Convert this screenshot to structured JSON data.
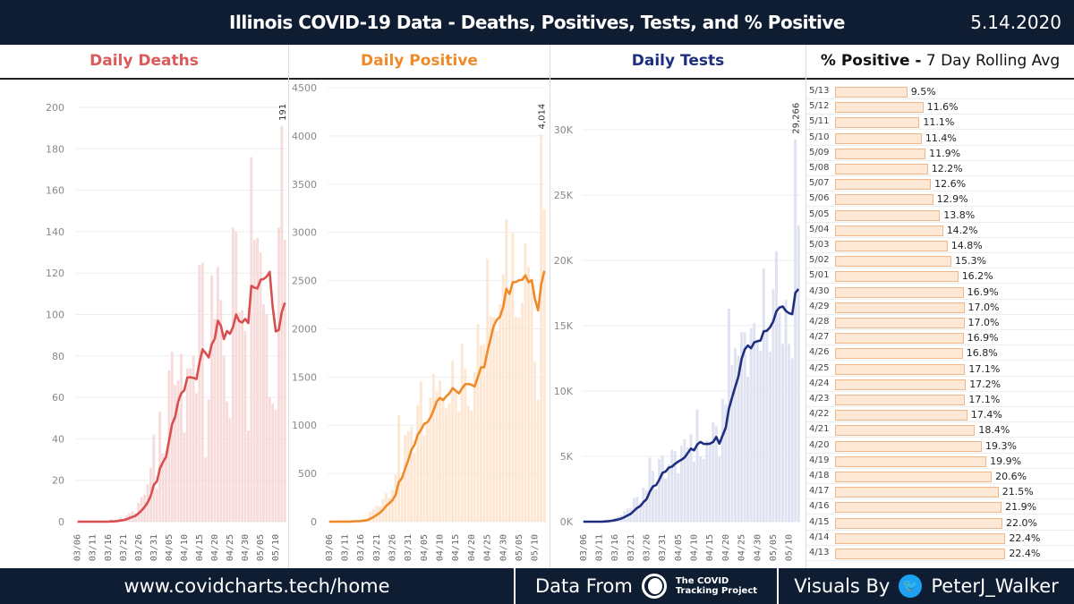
{
  "header": {
    "title": "Illinois COVID-19 Data - Deaths, Positives, Tests, and % Positive",
    "date": "5.14.2020"
  },
  "subheads": {
    "deaths": "Daily Deaths",
    "positive": "Daily Positive",
    "tests": "Daily Tests",
    "pct_bold": "% Positive -",
    "pct_rest": " 7 Day Rolling Avg"
  },
  "colors": {
    "deaths": "#dc5a5a",
    "positive": "#f08a28",
    "tests": "#1f2f80",
    "header_bg": "#0f1d33"
  },
  "chart_data": [
    {
      "type": "bar+line",
      "title": "Daily Deaths",
      "line": "7-day rolling average",
      "start_date": "2020-03-06",
      "x_tick_labels": [
        "03/06",
        "03/11",
        "03/16",
        "03/21",
        "03/26",
        "03/31",
        "04/05",
        "04/10",
        "04/15",
        "04/20",
        "04/25",
        "04/30",
        "05/05",
        "05/10"
      ],
      "y_ticks": [
        0,
        20,
        40,
        60,
        80,
        100,
        120,
        140,
        160,
        180,
        200
      ],
      "ylim": [
        0,
        208
      ],
      "peak_label": "191",
      "values": [
        0,
        0,
        0,
        0,
        0,
        0,
        0,
        0,
        0,
        0,
        0,
        1,
        0,
        1,
        2,
        1,
        3,
        4,
        5,
        4,
        9,
        12,
        13,
        18,
        26,
        42,
        16,
        53,
        33,
        31,
        73,
        82,
        66,
        68,
        81,
        43,
        74,
        74,
        80,
        62,
        124,
        125,
        31,
        59,
        119,
        98,
        123,
        107,
        80,
        58,
        50,
        142,
        140,
        101,
        102,
        92,
        44,
        176,
        136,
        137,
        130,
        105,
        100,
        60,
        57,
        54,
        142,
        191,
        136
      ]
    },
    {
      "type": "bar+line",
      "title": "Daily Positive",
      "line": "7-day rolling average",
      "start_date": "2020-03-06",
      "x_tick_labels": [
        "03/06",
        "03/11",
        "03/16",
        "03/21",
        "03/26",
        "03/31",
        "04/05",
        "04/10",
        "04/15",
        "04/20",
        "04/25",
        "04/30",
        "05/05",
        "05/10"
      ],
      "y_ticks": [
        0,
        500,
        1000,
        1500,
        2000,
        2500,
        3000,
        3500,
        4000,
        4500
      ],
      "ylim": [
        0,
        4500
      ],
      "peak_label": "4,014",
      "values": [
        0,
        0,
        1,
        1,
        1,
        0,
        6,
        7,
        14,
        12,
        12,
        25,
        33,
        105,
        128,
        168,
        163,
        236,
        296,
        250,
        330,
        488,
        1105,
        465,
        899,
        937,
        986,
        715,
        1209,
        1453,
        899,
        1006,
        1287,
        1529,
        1344,
        1465,
        1293,
        1173,
        1222,
        1667,
        1346,
        1140,
        1842,
        1585,
        1197,
        1151,
        1551,
        2049,
        1826,
        1842,
        2724,
        2126,
        2119,
        1980,
        2253,
        2563,
        3137,
        2341,
        2994,
        2122,
        2122,
        2270,
        2887,
        2641,
        2500,
        1656,
        1266,
        4014,
        3239
      ]
    },
    {
      "type": "bar+line",
      "title": "Daily Tests",
      "line": "7-day rolling average",
      "start_date": "2020-03-06",
      "x_tick_labels": [
        "03/06",
        "03/11",
        "03/16",
        "03/21",
        "03/26",
        "03/31",
        "04/05",
        "04/10",
        "04/15",
        "04/20",
        "04/25",
        "04/30",
        "05/05",
        "05/10"
      ],
      "y_ticks": [
        0,
        5000,
        10000,
        15000,
        20000,
        25000,
        30000
      ],
      "y_tick_labels": [
        "0K",
        "5K",
        "10K",
        "15K",
        "20K",
        "25K",
        "30K"
      ],
      "ylim": [
        0,
        33000
      ],
      "peak_label": "29,266",
      "values": [
        0,
        0,
        0,
        0,
        0,
        0,
        50,
        100,
        150,
        200,
        300,
        400,
        500,
        800,
        1000,
        1000,
        1800,
        1900,
        1400,
        2600,
        2400,
        4900,
        3900,
        2500,
        4800,
        5100,
        3300,
        4400,
        5500,
        5400,
        3700,
        5800,
        6300,
        5700,
        6700,
        4600,
        8600,
        5000,
        4800,
        6200,
        5900,
        7600,
        7300,
        5000,
        9400,
        9000,
        16300,
        12000,
        13300,
        12700,
        14500,
        14500,
        11100,
        14800,
        15200,
        13900,
        13100,
        19400,
        14800,
        13000,
        17800,
        20700,
        16000,
        13600,
        17000,
        13600,
        12500,
        29266,
        22700
      ]
    },
    {
      "type": "bar",
      "orientation": "horizontal",
      "title": "% Positive - 7 Day Rolling Avg",
      "categories": [
        "5/13",
        "5/12",
        "5/11",
        "5/10",
        "5/09",
        "5/08",
        "5/07",
        "5/06",
        "5/05",
        "5/04",
        "5/03",
        "5/02",
        "5/01",
        "4/30",
        "4/29",
        "4/28",
        "4/27",
        "4/26",
        "4/25",
        "4/24",
        "4/23",
        "4/22",
        "4/21",
        "4/20",
        "4/19",
        "4/18",
        "4/17",
        "4/16",
        "4/15",
        "4/14",
        "4/13"
      ],
      "values": [
        9.5,
        11.6,
        11.1,
        11.4,
        11.9,
        12.2,
        12.6,
        12.9,
        13.8,
        14.2,
        14.8,
        15.3,
        16.2,
        16.9,
        17.0,
        17.0,
        16.9,
        16.8,
        17.1,
        17.2,
        17.1,
        17.4,
        18.4,
        19.3,
        19.9,
        20.6,
        21.5,
        21.9,
        22.0,
        22.4,
        22.4
      ],
      "value_labels": [
        "9.5%",
        "11.6%",
        "11.1%",
        "11.4%",
        "11.9%",
        "12.2%",
        "12.6%",
        "12.9%",
        "13.8%",
        "14.2%",
        "14.8%",
        "15.3%",
        "16.2%",
        "16.9%",
        "17.0%",
        "17.0%",
        "16.9%",
        "16.8%",
        "17.1%",
        "17.2%",
        "17.1%",
        "17.4%",
        "18.4%",
        "19.3%",
        "19.9%",
        "20.6%",
        "21.5%",
        "21.9%",
        "22.0%",
        "22.4%",
        "22.4%"
      ]
    }
  ],
  "footer": {
    "url": "www.covidcharts.tech/home",
    "data_from": "Data From",
    "source_line1": "The COVID",
    "source_line2": "Tracking Project",
    "visuals_by": "Visuals By",
    "handle": "PeterJ_Walker",
    "twitter_glyph": "🐦"
  }
}
